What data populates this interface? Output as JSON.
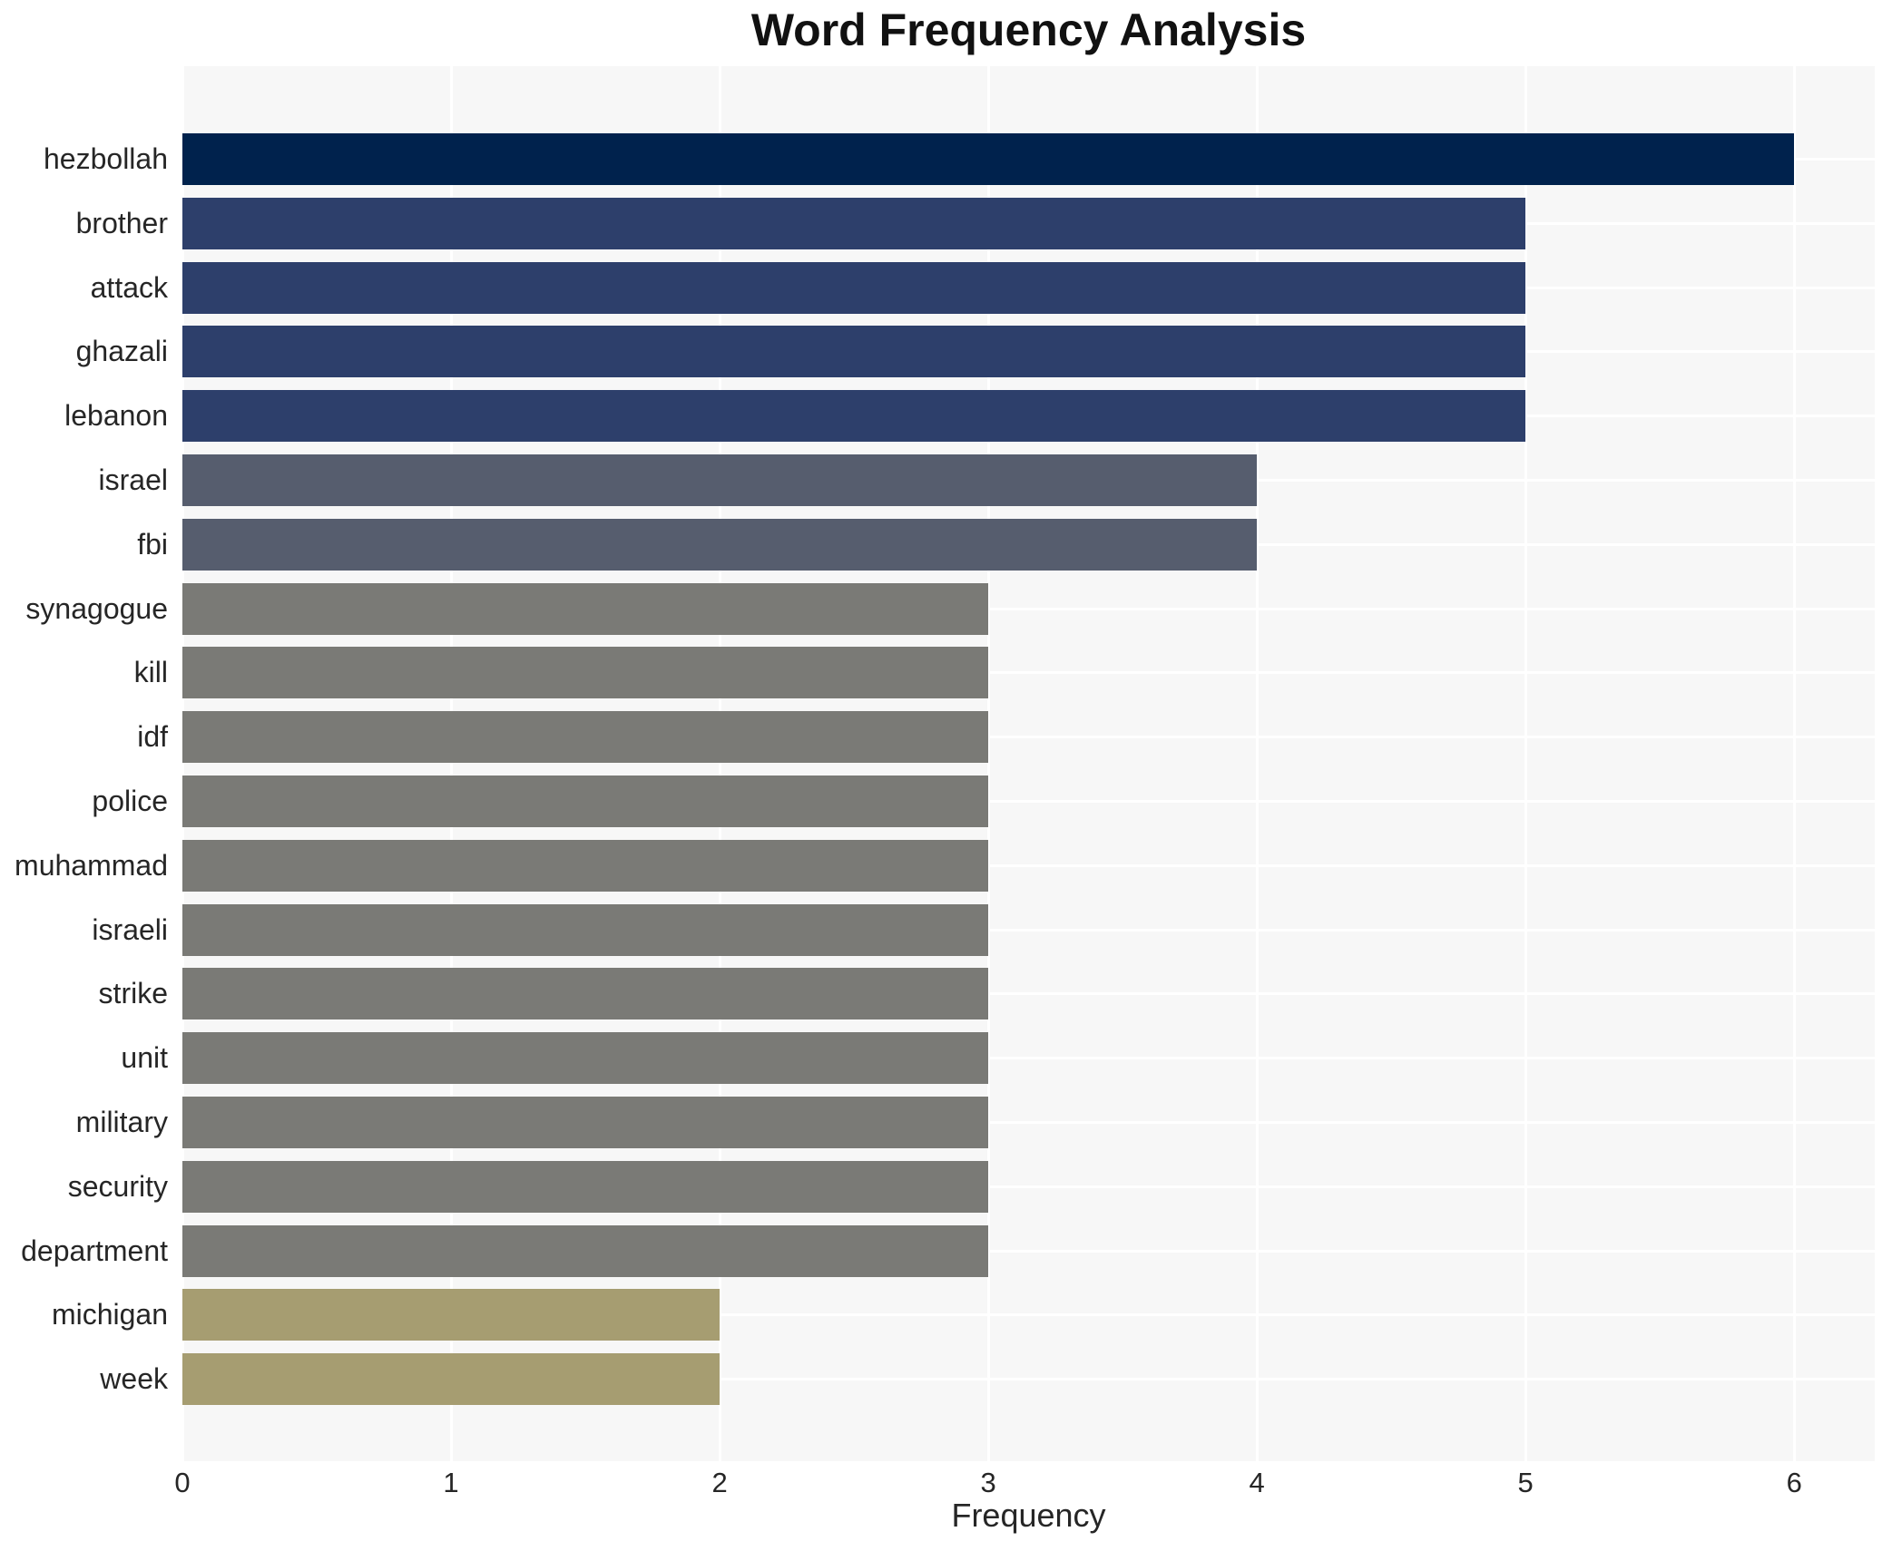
{
  "chart_data": {
    "type": "bar",
    "orientation": "horizontal",
    "title": "Word Frequency Analysis",
    "xlabel": "Frequency",
    "ylabel": "",
    "categories": [
      "hezbollah",
      "brother",
      "attack",
      "ghazali",
      "lebanon",
      "israel",
      "fbi",
      "synagogue",
      "kill",
      "idf",
      "police",
      "muhammad",
      "israeli",
      "strike",
      "unit",
      "military",
      "security",
      "department",
      "michigan",
      "week"
    ],
    "values": [
      6,
      5,
      5,
      5,
      5,
      4,
      4,
      3,
      3,
      3,
      3,
      3,
      3,
      3,
      3,
      3,
      3,
      3,
      2,
      2
    ],
    "bar_colors": [
      "#00224d",
      "#2d3f6b",
      "#2d3f6b",
      "#2d3f6b",
      "#2d3f6b",
      "#565d6e",
      "#565d6e",
      "#7a7a76",
      "#7a7a76",
      "#7a7a76",
      "#7a7a76",
      "#7a7a76",
      "#7a7a76",
      "#7a7a76",
      "#7a7a76",
      "#7a7a76",
      "#7a7a76",
      "#7a7a76",
      "#a69d71",
      "#a69d71"
    ],
    "xticks": [
      0,
      1,
      2,
      3,
      4,
      5,
      6
    ],
    "xlim": [
      0,
      6.3
    ],
    "grid": true,
    "legend": false,
    "panel_bg": "#f7f7f7",
    "grid_color": "#ffffff",
    "text_color": "#262626"
  }
}
